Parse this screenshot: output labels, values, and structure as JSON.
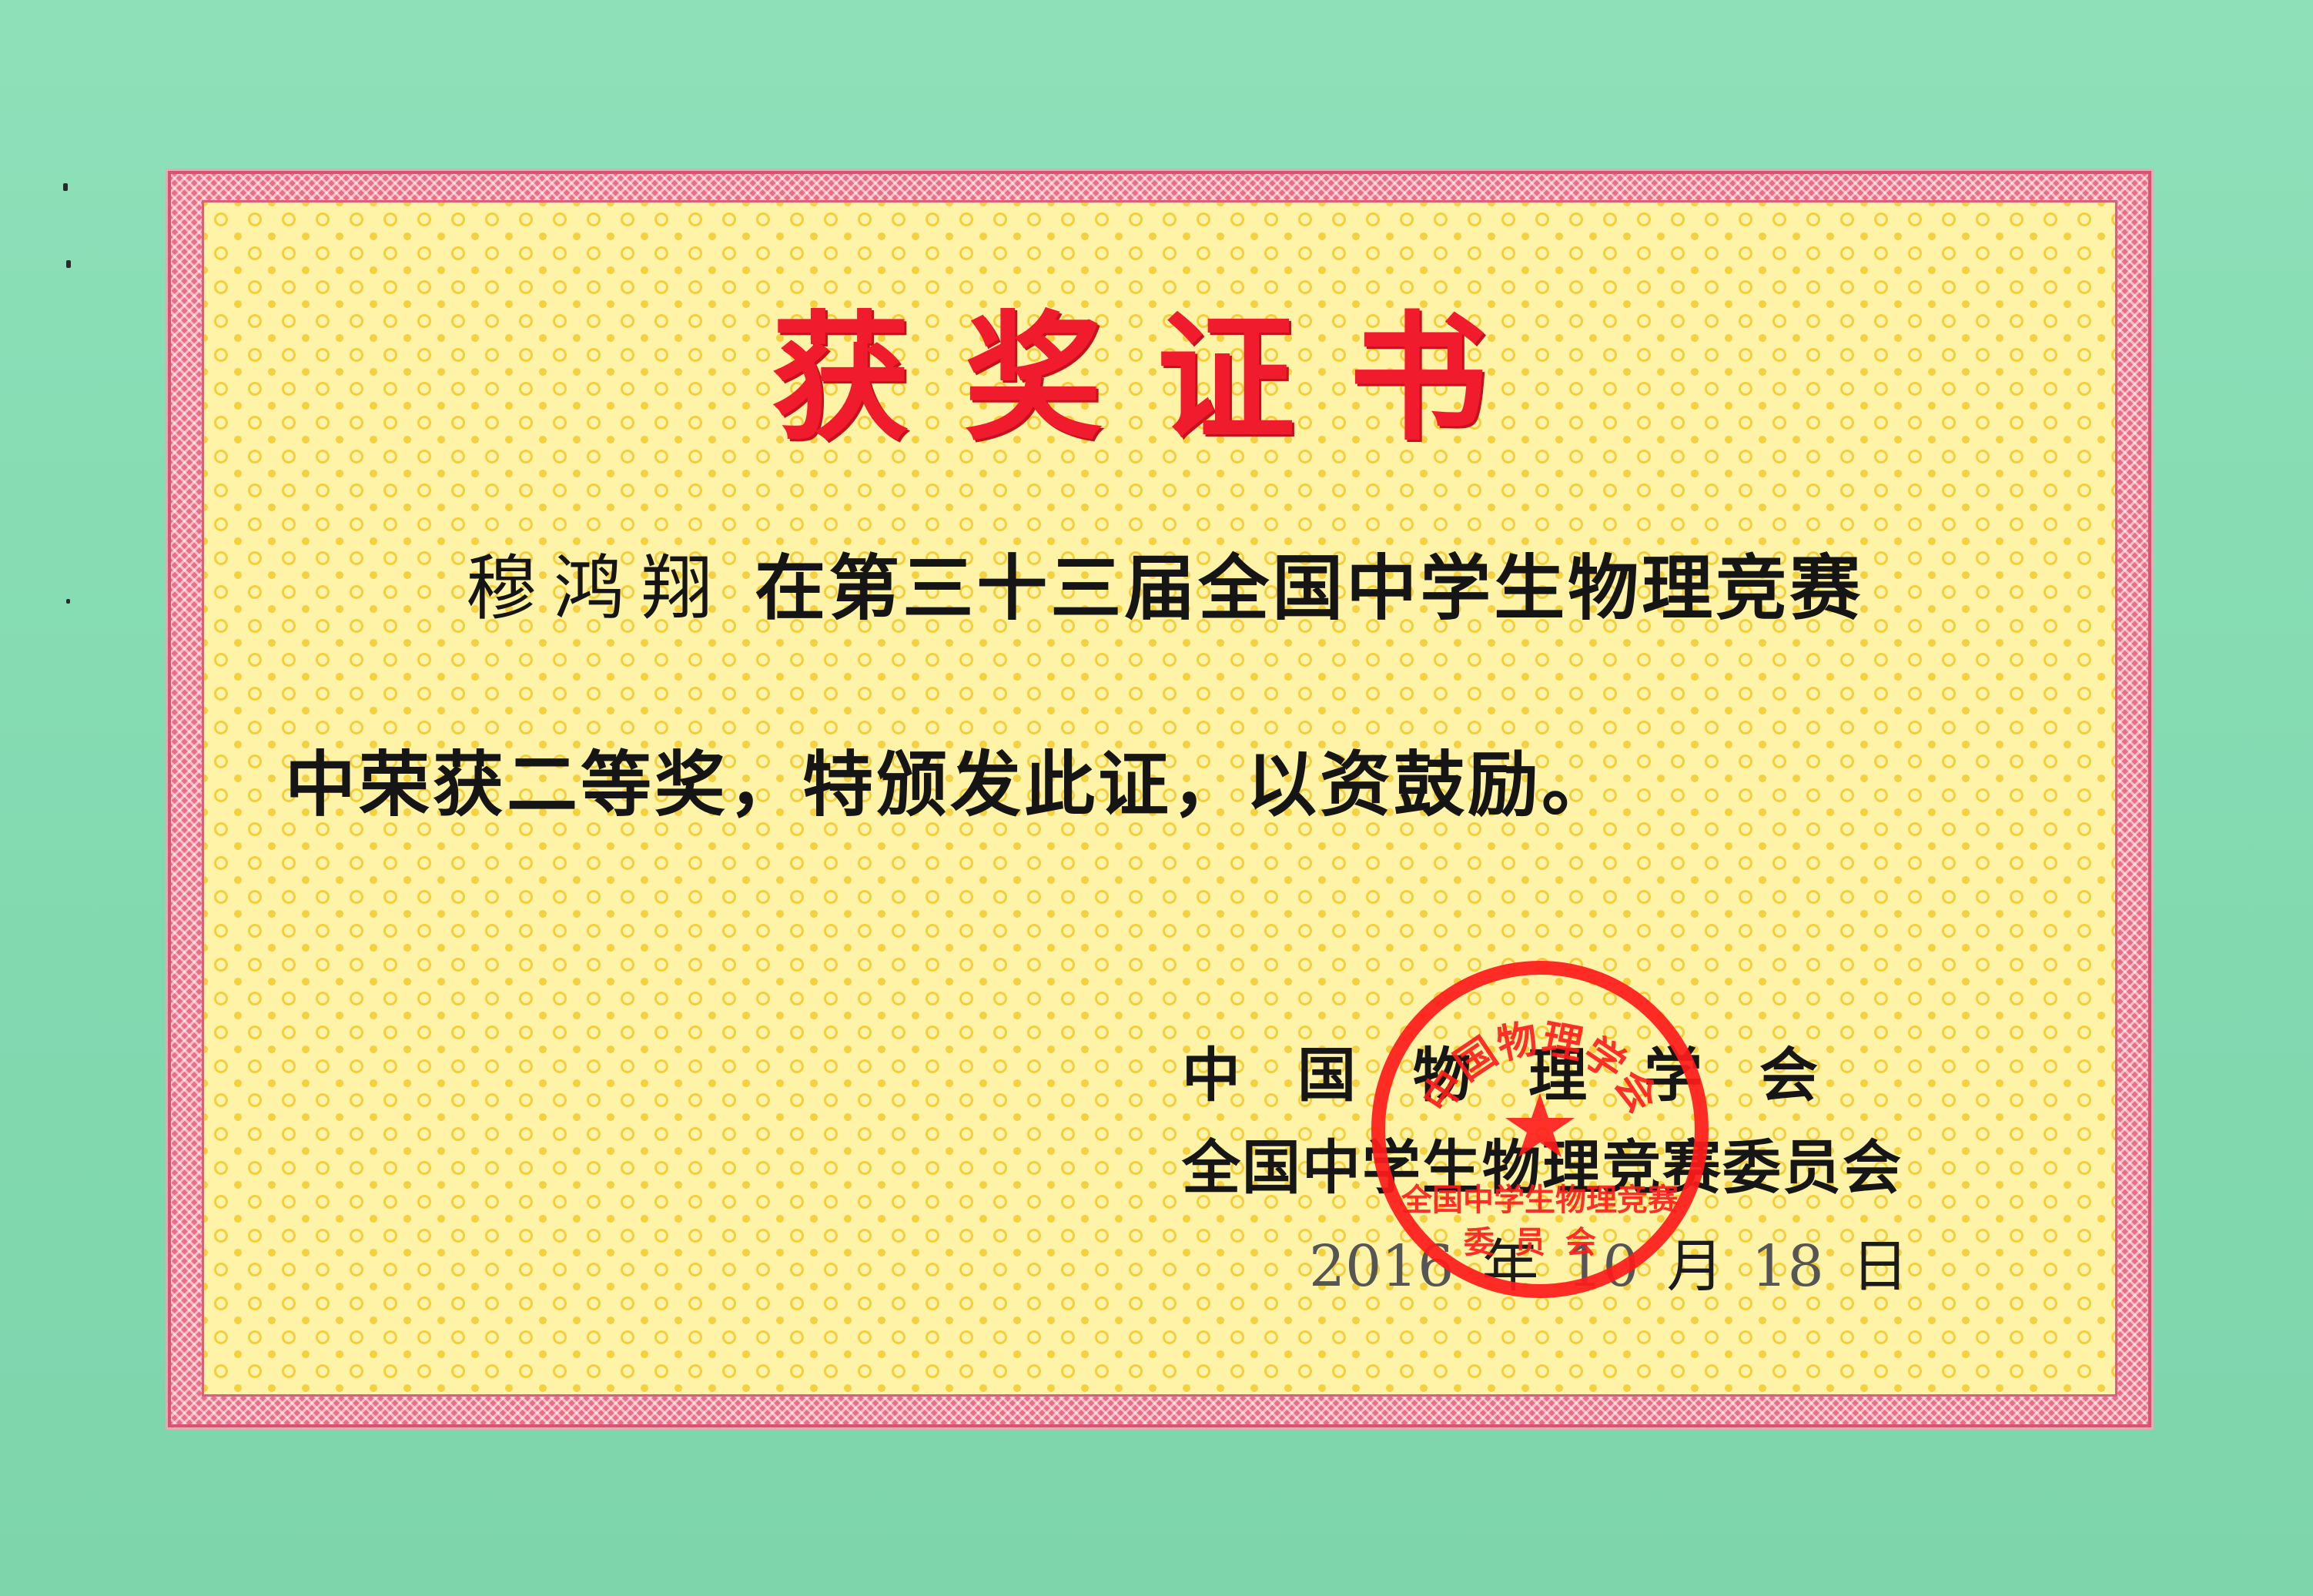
{
  "certificate": {
    "title": "获奖证书",
    "recipient_name": "穆鸿翔",
    "body_line1": "在第三十三届全国中学生物理竞赛",
    "body_line2": "中荣获二等奖，特颁发此证，以资鼓励。",
    "issuer_line1": "中国物理学会",
    "issuer_line2": "全国中学生物理竞赛委员会",
    "date": {
      "year": "2016",
      "year_unit": "年",
      "month": "10",
      "month_unit": "月",
      "day": "18",
      "day_unit": "日"
    },
    "seal": {
      "top_arc_text": "中国物理学会",
      "bottom_text_line1": "全国中学生物理竞赛",
      "bottom_text_line2": "委员会"
    },
    "colors": {
      "background": "#84dcb2",
      "border": "#ea6f86",
      "panel": "#fff3a8",
      "title": "#f01b2c",
      "seal": "#ff1b1b"
    }
  }
}
